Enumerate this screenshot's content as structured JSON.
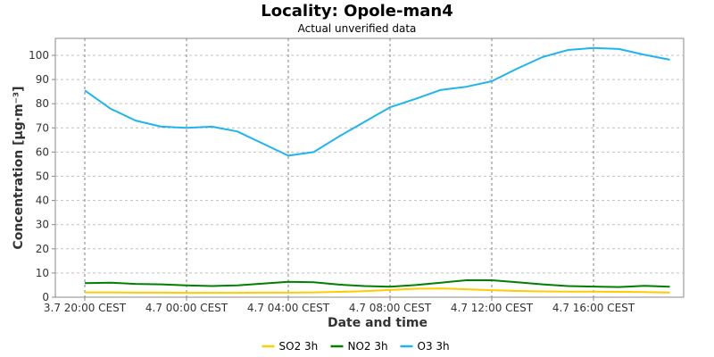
{
  "chart_data": {
    "type": "line",
    "title": "Locality: Opole-man4",
    "subtitle": "Actual unverified data",
    "xlabel": "Date and time",
    "ylabel": "Concentration [µg·m⁻³]",
    "ylim": [
      0,
      107
    ],
    "yticks": [
      0,
      10,
      20,
      30,
      40,
      50,
      60,
      70,
      80,
      90,
      100
    ],
    "xticks": [
      {
        "t": 0,
        "label": "3.7 20:00 CEST"
      },
      {
        "t": 4,
        "label": "4.7 00:00 CEST"
      },
      {
        "t": 8,
        "label": "4.7 04:00 CEST"
      },
      {
        "t": 12,
        "label": "4.7 08:00 CEST"
      },
      {
        "t": 16,
        "label": "4.7 12:00 CEST"
      },
      {
        "t": 20,
        "label": "4.7 16:00 CEST"
      }
    ],
    "x": [
      0,
      1,
      2,
      3,
      4,
      5,
      6,
      7,
      8,
      9,
      10,
      11,
      12,
      13,
      14,
      15,
      16,
      17,
      18,
      19,
      20,
      21,
      22,
      23
    ],
    "grid": true,
    "legend": "bottom-center",
    "series": [
      {
        "name": "SO2 3h",
        "color": "#FFCC00",
        "values": [
          2.0,
          2.0,
          1.9,
          1.9,
          1.8,
          1.8,
          1.8,
          1.9,
          1.9,
          2.0,
          2.2,
          2.5,
          3.0,
          3.5,
          3.6,
          3.3,
          2.9,
          2.6,
          2.4,
          2.3,
          2.3,
          2.2,
          2.1,
          1.9
        ]
      },
      {
        "name": "NO2 3h",
        "color": "#008000",
        "values": [
          5.8,
          6.0,
          5.5,
          5.3,
          4.9,
          4.6,
          4.9,
          5.6,
          6.4,
          6.2,
          5.2,
          4.6,
          4.3,
          5.0,
          6.0,
          7.0,
          7.0,
          6.2,
          5.3,
          4.6,
          4.4,
          4.2,
          4.7,
          4.3
        ]
      },
      {
        "name": "O3 3h",
        "color": "#1EB4F0",
        "values": [
          85.5,
          78.0,
          73.0,
          70.5,
          70.0,
          70.5,
          68.5,
          63.5,
          58.5,
          60.0,
          66.5,
          72.5,
          78.5,
          82.0,
          85.7,
          87.0,
          89.3,
          94.5,
          99.3,
          102.2,
          103.0,
          102.6,
          100.2,
          98.2
        ]
      }
    ]
  }
}
